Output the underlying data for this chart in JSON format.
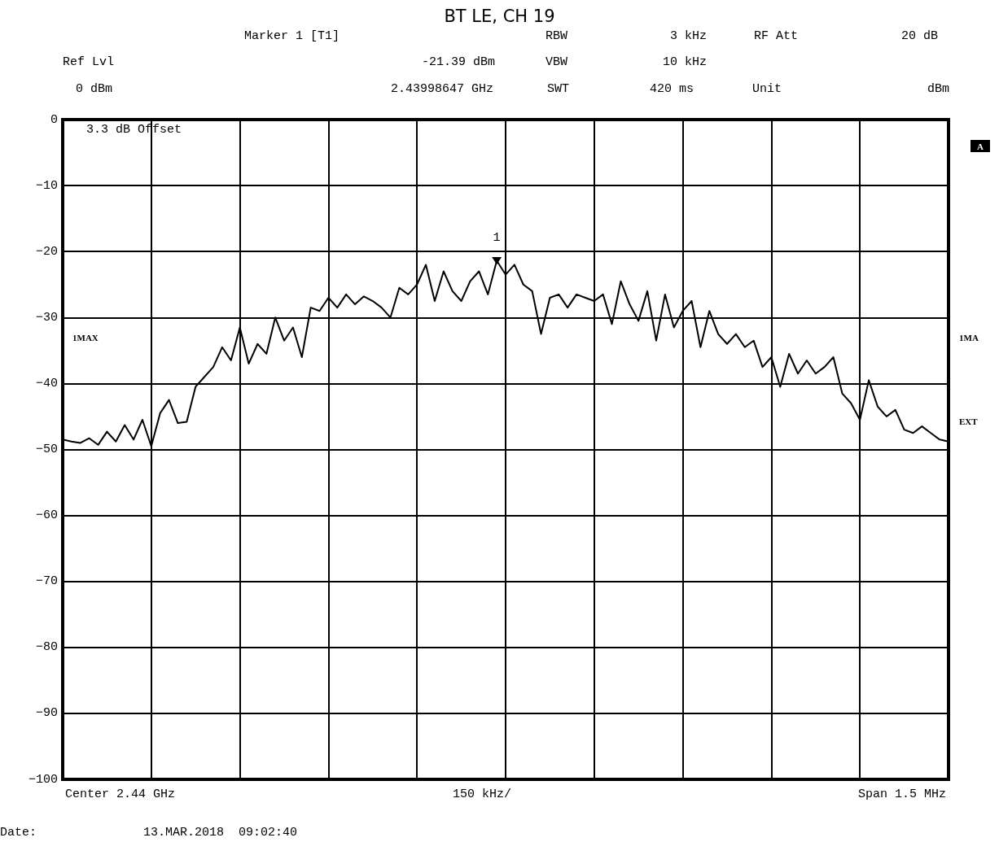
{
  "chart_data": {
    "type": "line",
    "title": "BT LE, CH 19",
    "categories": [
      null,
      null,
      null,
      null,
      null,
      null,
      null,
      null,
      null,
      null,
      null,
      null,
      null,
      null,
      null,
      null,
      null,
      null,
      null,
      null,
      null,
      null,
      null,
      null,
      null,
      null,
      null,
      null,
      null,
      null,
      null,
      null,
      null,
      null,
      null,
      null,
      null,
      null,
      null,
      null,
      null,
      null,
      null,
      null,
      null,
      null,
      null,
      null,
      null,
      null,
      null,
      null,
      null,
      null,
      null,
      null,
      null,
      null,
      null,
      null,
      null,
      null,
      null,
      null,
      null,
      null,
      null,
      null,
      null,
      null,
      null,
      null,
      null,
      null,
      null,
      null,
      null,
      null,
      null,
      null,
      null,
      null,
      null,
      null,
      null,
      null,
      null,
      null,
      null,
      null,
      null,
      null,
      null,
      null,
      null,
      null,
      null,
      null,
      null,
      null,
      null
    ],
    "series": [
      {
        "color": "#000000",
        "values": [
          -48.5,
          -48.8,
          -49,
          -48.3,
          -49.3,
          -47.3,
          -48.8,
          -46.3,
          -48.5,
          -45.5,
          -49.5,
          -44.5,
          -42.5,
          -46,
          -45.8,
          -40.5,
          -39,
          -37.5,
          -34.5,
          -36.5,
          -31.5,
          -37,
          -34,
          -35.5,
          -30,
          -33.5,
          -31.5,
          -36,
          -28.5,
          -29,
          -27,
          -28.5,
          -26.5,
          -28,
          -26.8,
          -27.5,
          -28.5,
          -30,
          -25.5,
          -26.5,
          -25,
          -22,
          -27.5,
          -23,
          -26,
          -27.5,
          -24.5,
          -23,
          -26.5,
          -21.39,
          -23.5,
          -22,
          -25,
          -26,
          -32.5,
          -27,
          -26.5,
          -28.5,
          -26.5,
          -27,
          -27.5,
          -26.5,
          -31,
          -24.5,
          -28,
          -30.5,
          -26,
          -33.5,
          -26.5,
          -31.5,
          -29,
          -27.5,
          -34.5,
          -29,
          -32.5,
          -34,
          -32.5,
          -34.5,
          -33.5,
          -37.5,
          -36,
          -40.5,
          -35.5,
          -38.5,
          -36.5,
          -38.5,
          -37.5,
          -36,
          -41.5,
          -43,
          -45.5,
          -39.5,
          -43.5,
          -45,
          -44,
          -47,
          -47.5,
          -46.5,
          -47.5,
          -48.5,
          -48.8
        ]
      }
    ],
    "ylim": [
      -100,
      0
    ],
    "yticks": [
      -100,
      -90,
      -80,
      -70,
      -60,
      -50,
      -40,
      -30,
      -20,
      -10,
      0
    ],
    "grid": true,
    "marker": "none",
    "line_style": "solid",
    "annotations": [
      "Marker 1 [T1]",
      "RBW",
      "3 kHz",
      "RF Att",
      "20 dB",
      "Ref Lvl",
      "-21.39 dBm",
      "VBW",
      "10 kHz",
      "0 dBm",
      "2.43998647 GHz",
      "SWT",
      "420 ms",
      "Unit",
      "dBm",
      "3.3 dB Offset",
      "1MAX",
      "A",
      "1MA",
      "EXT",
      "Center 2.44 GHz",
      "150 kHz/",
      "Span 1.5 MHz",
      "Date:",
      "13.MAR.2018  09:02:40",
      {
        "text": "1",
        "y": -21.39
      }
    ]
  }
}
